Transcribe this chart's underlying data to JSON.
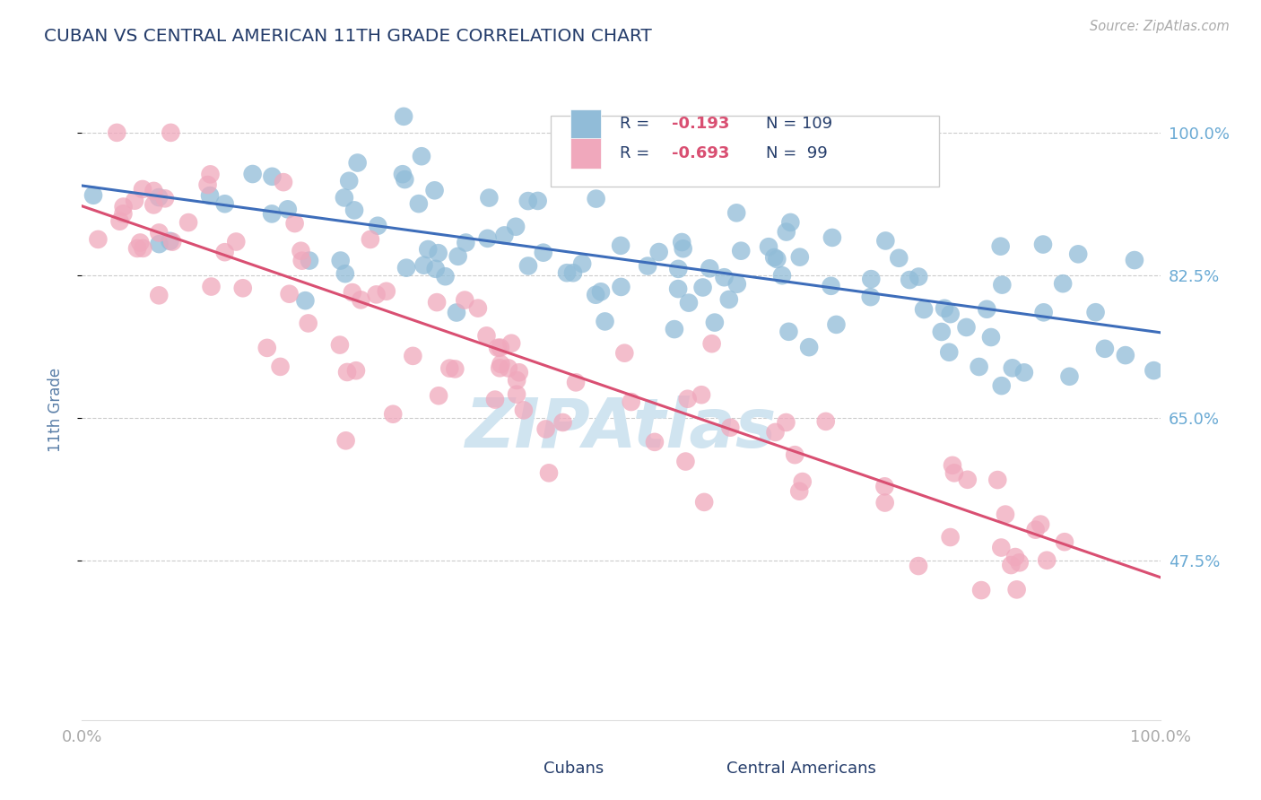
{
  "title": "CUBAN VS CENTRAL AMERICAN 11TH GRADE CORRELATION CHART",
  "source_text": "Source: ZipAtlas.com",
  "ylabel": "11th Grade",
  "xmin": 0.0,
  "xmax": 1.0,
  "ymin": 0.28,
  "ymax": 1.04,
  "yticks": [
    0.475,
    0.65,
    0.825,
    1.0
  ],
  "ytick_labels": [
    "47.5%",
    "65.0%",
    "82.5%",
    "100.0%"
  ],
  "xticks": [
    0.0,
    1.0
  ],
  "xtick_labels": [
    "0.0%",
    "100.0%"
  ],
  "blue_color": "#91bcd8",
  "pink_color": "#f0a8bc",
  "line_blue": "#3d6dba",
  "line_pink": "#d94f72",
  "watermark": "ZIPAtlas",
  "watermark_color": "#d0e4f0",
  "title_color": "#253d6b",
  "axis_label_color": "#5a7fa8",
  "tick_label_color": "#6aaad4",
  "legend_text_color": "#253d6b",
  "legend_r1_label": "R = ",
  "legend_r1_val": "-0.193",
  "legend_r1_n": "N = 109",
  "legend_r2_label": "R = ",
  "legend_r2_val": "-0.693",
  "legend_r2_n": "N =  99",
  "blue_N": 109,
  "pink_N": 99,
  "blue_R": -0.193,
  "pink_R": -0.693,
  "blue_line_x0": 0.0,
  "blue_line_y0": 0.935,
  "blue_line_x1": 1.0,
  "blue_line_y1": 0.755,
  "pink_line_x0": 0.0,
  "pink_line_y0": 0.91,
  "pink_line_x1": 1.0,
  "pink_line_y1": 0.455,
  "seed_blue": 42,
  "seed_pink": 99
}
